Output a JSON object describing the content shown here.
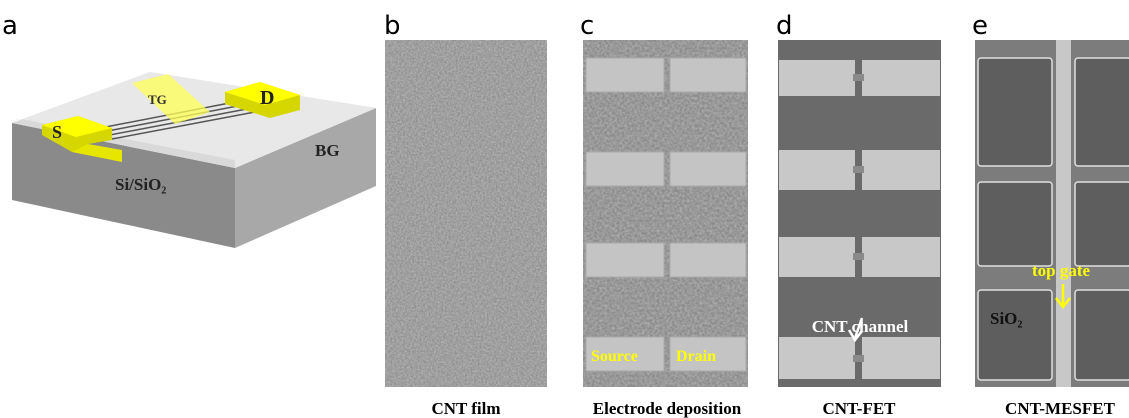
{
  "panels": [
    {
      "letter": "a",
      "labels": [
        "TG",
        "S",
        "D",
        "BG",
        "Si/SiO₂"
      ]
    },
    {
      "letter": "b",
      "caption": "CNT film"
    },
    {
      "letter": "c",
      "caption": "Electrode deposition",
      "labels": [
        "Source",
        "Drain"
      ]
    },
    {
      "letter": "d",
      "caption": "CNT-FET",
      "labels": [
        "CNT channel"
      ]
    },
    {
      "letter": "e",
      "caption": "CNT-MESFET",
      "labels": [
        "top gate",
        "SiO₂"
      ]
    }
  ]
}
